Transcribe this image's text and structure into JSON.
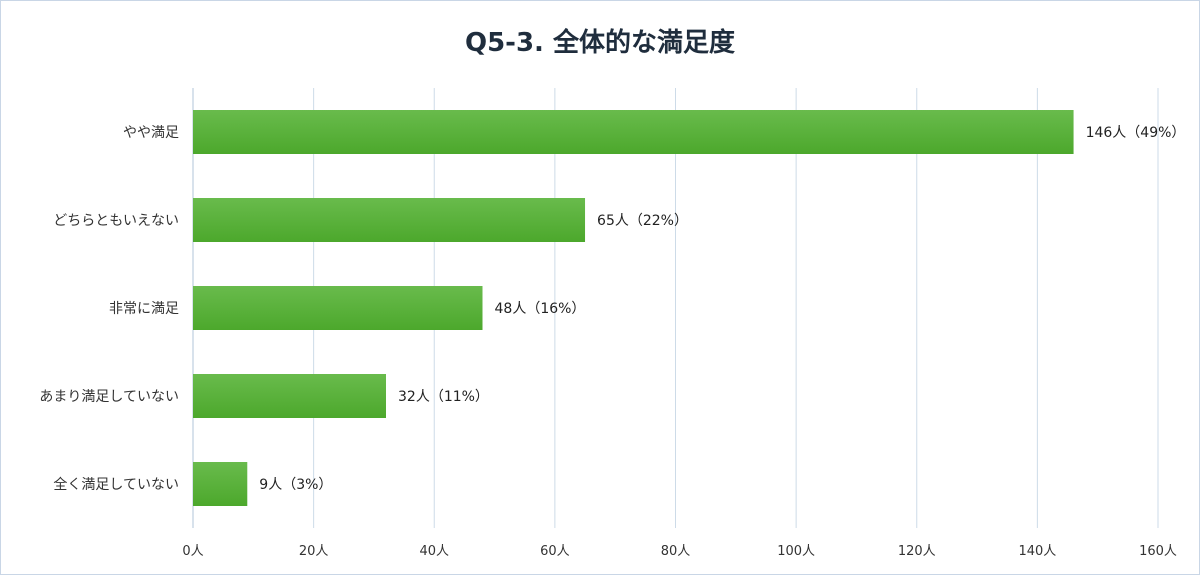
{
  "chart_data": {
    "type": "bar",
    "orientation": "horizontal",
    "title": "Q5-3. 全体的な満足度",
    "categories": [
      "やや満足",
      "どちらともいえない",
      "非常に満足",
      "あまり満足していない",
      "全く満足していない"
    ],
    "values": [
      146,
      65,
      48,
      32,
      9
    ],
    "data_labels": [
      "146人（49%）",
      "65人（22%）",
      "48人（16%）",
      "32人（11%）",
      "9人（3%）"
    ],
    "x_ticks": [
      "0人",
      "20人",
      "40人",
      "60人",
      "80人",
      "100人",
      "120人",
      "140人",
      "160人"
    ],
    "xlim": [
      0,
      160
    ],
    "grid": true,
    "bar_color": "#4ca82c",
    "bar_color_light": "#69bb4c"
  }
}
